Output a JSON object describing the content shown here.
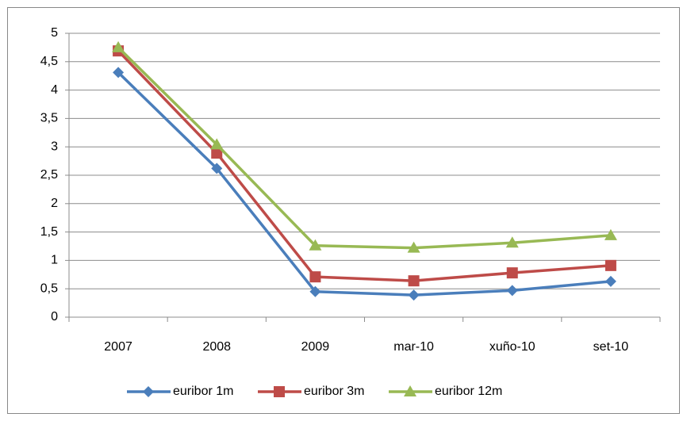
{
  "chart_data": {
    "type": "line",
    "categories": [
      "2007",
      "2008",
      "2009",
      "mar-10",
      "xuño-10",
      "set-10"
    ],
    "series": [
      {
        "name": "euribor 1m",
        "color": "#4a7ebb",
        "marker": "diamond",
        "values": [
          4.31,
          2.62,
          0.45,
          0.39,
          0.47,
          0.63
        ]
      },
      {
        "name": "euribor 3m",
        "color": "#be4b48",
        "marker": "square",
        "values": [
          4.69,
          2.89,
          0.71,
          0.64,
          0.78,
          0.91
        ]
      },
      {
        "name": "euribor 12m",
        "color": "#98b954",
        "marker": "triangle",
        "values": [
          4.75,
          3.04,
          1.26,
          1.22,
          1.31,
          1.44
        ]
      }
    ],
    "ylim": [
      0,
      5
    ],
    "yticks": [
      0,
      {
        "value": 0.5,
        "label": "0,5"
      },
      1,
      {
        "value": 1.5,
        "label": "1,5"
      },
      2,
      {
        "value": 2.5,
        "label": "2,5"
      },
      3,
      {
        "value": 3.5,
        "label": "3,5"
      },
      4,
      {
        "value": 4.5,
        "label": "4,5"
      },
      5
    ],
    "grid": true,
    "legend": "bottom"
  }
}
